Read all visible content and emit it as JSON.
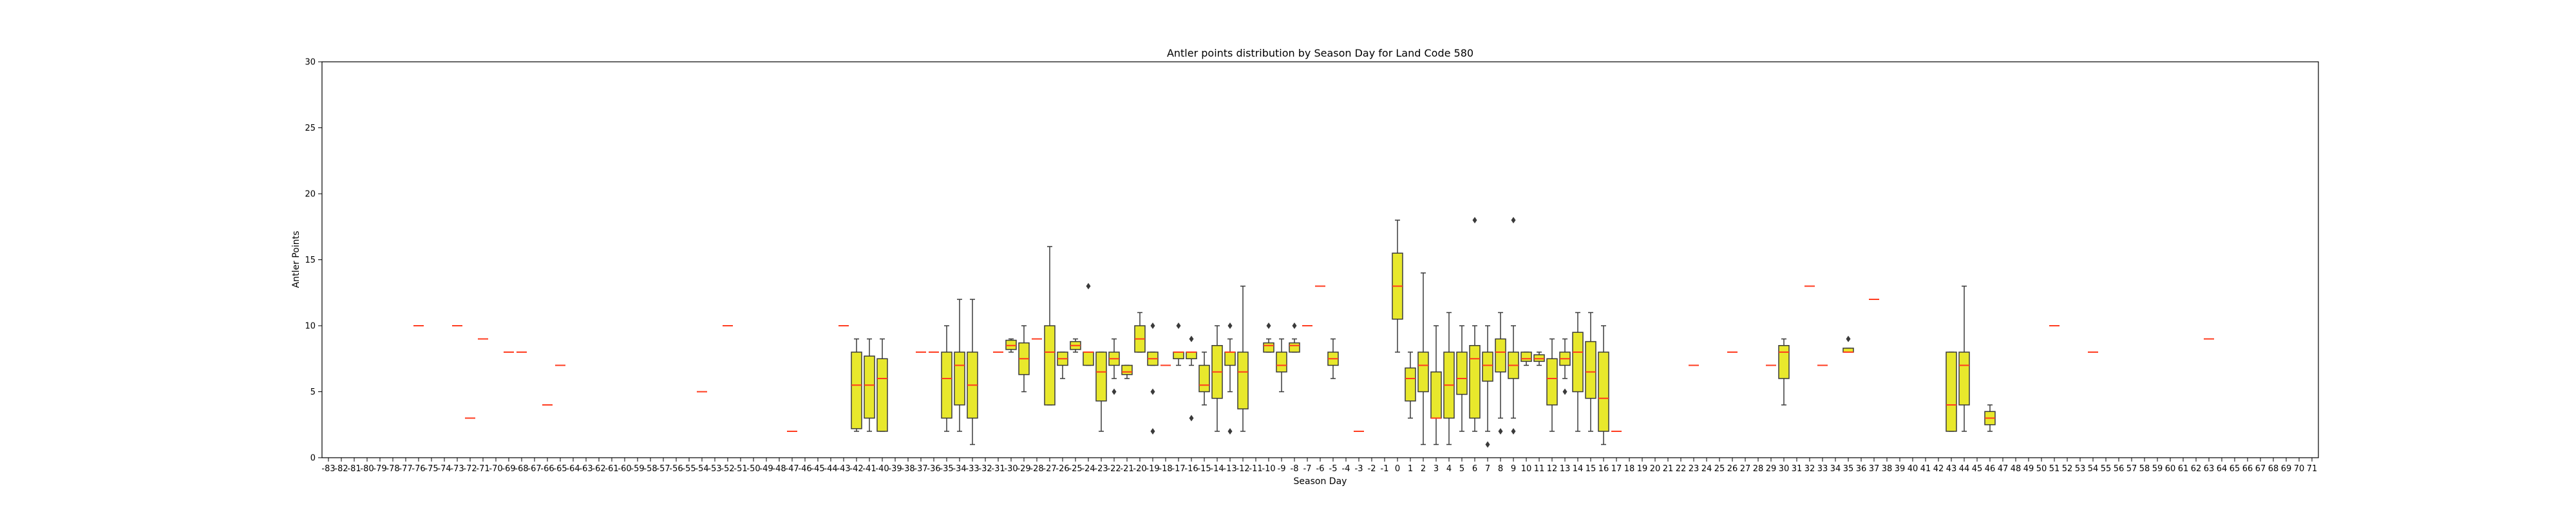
{
  "chart_data": {
    "type": "box",
    "title": "Antler points distribution by Season Day for Land Code 580",
    "xlabel": "Season Day",
    "ylabel": "Antler Points",
    "ylim": [
      0,
      30
    ],
    "y_ticks": [
      0,
      5,
      10,
      15,
      20,
      25,
      30
    ],
    "x_categories": [
      -83,
      -82,
      -81,
      -80,
      -79,
      -78,
      -77,
      -76,
      -75,
      -74,
      -73,
      -72,
      -71,
      -70,
      -69,
      -68,
      -67,
      -66,
      -65,
      -64,
      -63,
      -62,
      -61,
      -60,
      -59,
      -58,
      -57,
      -56,
      -55,
      -54,
      -53,
      -52,
      -51,
      -50,
      -49,
      -48,
      -47,
      -46,
      -45,
      -44,
      -43,
      -42,
      -41,
      -40,
      -39,
      -38,
      -37,
      -36,
      -35,
      -34,
      -33,
      -32,
      -31,
      -30,
      -29,
      -28,
      -27,
      -26,
      -25,
      -24,
      -23,
      -22,
      -21,
      -20,
      -19,
      -18,
      -17,
      -16,
      -15,
      -14,
      -13,
      -12,
      -11,
      -10,
      -9,
      -8,
      -7,
      -6,
      -5,
      -4,
      -3,
      -2,
      -1,
      0,
      1,
      2,
      3,
      4,
      5,
      6,
      7,
      8,
      9,
      10,
      11,
      12,
      13,
      14,
      15,
      16,
      17,
      18,
      19,
      20,
      21,
      22,
      23,
      24,
      25,
      26,
      27,
      28,
      29,
      30,
      31,
      32,
      33,
      34,
      35,
      36,
      37,
      38,
      39,
      40,
      41,
      42,
      43,
      44,
      45,
      46,
      47,
      48,
      49,
      50,
      51,
      52,
      53,
      54,
      55,
      56,
      57,
      58,
      59,
      60,
      61,
      62,
      63,
      64,
      65,
      66,
      67,
      68,
      69,
      70,
      71
    ],
    "box_color": "#e8e82c",
    "median_color": "#ff3b1f",
    "grid": false,
    "legend": "none",
    "boxes": [
      {
        "day": -76,
        "median": 10
      },
      {
        "day": -73,
        "median": 10
      },
      {
        "day": -72,
        "median": 3
      },
      {
        "day": -71,
        "median": 9
      },
      {
        "day": -69,
        "median": 8
      },
      {
        "day": -68,
        "median": 8
      },
      {
        "day": -66,
        "median": 4
      },
      {
        "day": -65,
        "median": 7
      },
      {
        "day": -54,
        "median": 5
      },
      {
        "day": -52,
        "median": 10
      },
      {
        "day": -47,
        "median": 2
      },
      {
        "day": -43,
        "median": 10
      },
      {
        "day": -42,
        "whislo": 2,
        "q1": 2.2,
        "median": 5.5,
        "q3": 8,
        "whishi": 9
      },
      {
        "day": -41,
        "whislo": 2,
        "q1": 3,
        "median": 5.5,
        "q3": 7.7,
        "whishi": 9
      },
      {
        "day": -40,
        "whislo": 2,
        "q1": 2,
        "median": 6,
        "q3": 7.5,
        "whishi": 9
      },
      {
        "day": -37,
        "median": 8
      },
      {
        "day": -36,
        "median": 8
      },
      {
        "day": -35,
        "whislo": 2,
        "q1": 3,
        "median": 6,
        "q3": 8,
        "whishi": 10
      },
      {
        "day": -34,
        "whislo": 2,
        "q1": 4,
        "median": 7,
        "q3": 8,
        "whishi": 12
      },
      {
        "day": -33,
        "whislo": 1,
        "q1": 3,
        "median": 5.5,
        "q3": 8,
        "whishi": 12
      },
      {
        "day": -31,
        "median": 8
      },
      {
        "day": -30,
        "whislo": 8,
        "q1": 8.2,
        "median": 8.5,
        "q3": 8.9,
        "whishi": 9
      },
      {
        "day": -29,
        "whislo": 5,
        "q1": 6.3,
        "median": 7.5,
        "q3": 8.7,
        "whishi": 10
      },
      {
        "day": -28,
        "median": 9
      },
      {
        "day": -27,
        "whislo": 4,
        "q1": 4,
        "median": 8,
        "q3": 10,
        "whishi": 16
      },
      {
        "day": -26,
        "whislo": 6,
        "q1": 7,
        "median": 7.5,
        "q3": 8,
        "whishi": 8
      },
      {
        "day": -25,
        "whislo": 8,
        "q1": 8.2,
        "median": 8.5,
        "q3": 8.8,
        "whishi": 9
      },
      {
        "day": -24,
        "whislo": 7,
        "q1": 7,
        "median": 8,
        "q3": 8,
        "whishi": 8,
        "fliers": [
          13
        ]
      },
      {
        "day": -23,
        "whislo": 2,
        "q1": 4.3,
        "median": 6.5,
        "q3": 8,
        "whishi": 8
      },
      {
        "day": -22,
        "whislo": 6,
        "q1": 7,
        "median": 7.5,
        "q3": 8,
        "whishi": 9,
        "fliers": [
          5
        ]
      },
      {
        "day": -21,
        "whislo": 6,
        "q1": 6.3,
        "median": 6.5,
        "q3": 7,
        "whishi": 7
      },
      {
        "day": -20,
        "whislo": 8,
        "q1": 8,
        "median": 9,
        "q3": 10,
        "whishi": 11
      },
      {
        "day": -19,
        "whislo": 7,
        "q1": 7,
        "median": 7.5,
        "q3": 8,
        "whishi": 8,
        "fliers": [
          10,
          5,
          2
        ]
      },
      {
        "day": -18,
        "median": 7
      },
      {
        "day": -17,
        "whislo": 7,
        "q1": 7.5,
        "median": 8,
        "q3": 8,
        "whishi": 8,
        "fliers": [
          10
        ]
      },
      {
        "day": -16,
        "whislo": 7,
        "q1": 7.5,
        "median": 8,
        "q3": 8,
        "whishi": 8,
        "fliers": [
          9,
          3
        ]
      },
      {
        "day": -15,
        "whislo": 4,
        "q1": 5,
        "median": 5.5,
        "q3": 7,
        "whishi": 8
      },
      {
        "day": -14,
        "whislo": 2,
        "q1": 4.5,
        "median": 6.5,
        "q3": 8.5,
        "whishi": 10
      },
      {
        "day": -13,
        "whislo": 5,
        "q1": 7,
        "median": 8,
        "q3": 8,
        "whishi": 9,
        "fliers": [
          10,
          2
        ]
      },
      {
        "day": -12,
        "whislo": 2,
        "q1": 3.7,
        "median": 6.5,
        "q3": 8,
        "whishi": 13
      },
      {
        "day": -10,
        "whislo": 8,
        "q1": 8,
        "median": 8.5,
        "q3": 8.7,
        "whishi": 9,
        "fliers": [
          10
        ]
      },
      {
        "day": -9,
        "whislo": 5,
        "q1": 6.5,
        "median": 7,
        "q3": 8,
        "whishi": 9
      },
      {
        "day": -8,
        "whislo": 8,
        "q1": 8,
        "median": 8.5,
        "q3": 8.7,
        "whishi": 9,
        "fliers": [
          10
        ]
      },
      {
        "day": -7,
        "median": 10
      },
      {
        "day": -6,
        "median": 13
      },
      {
        "day": -5,
        "whislo": 6,
        "q1": 7,
        "median": 7.5,
        "q3": 8,
        "whishi": 9
      },
      {
        "day": -3,
        "median": 2
      },
      {
        "day": 0,
        "whislo": 8,
        "q1": 10.5,
        "median": 13,
        "q3": 15.5,
        "whishi": 18
      },
      {
        "day": 1,
        "whislo": 3,
        "q1": 4.3,
        "median": 6,
        "q3": 6.8,
        "whishi": 8
      },
      {
        "day": 2,
        "whislo": 1,
        "q1": 5,
        "median": 7,
        "q3": 8,
        "whishi": 14
      },
      {
        "day": 3,
        "whislo": 1,
        "q1": 3,
        "median": 3,
        "q3": 6.5,
        "whishi": 10
      },
      {
        "day": 4,
        "whislo": 1,
        "q1": 3,
        "median": 5.5,
        "q3": 8,
        "whishi": 11
      },
      {
        "day": 5,
        "whislo": 2,
        "q1": 4.8,
        "median": 6,
        "q3": 8,
        "whishi": 10
      },
      {
        "day": 6,
        "whislo": 2,
        "q1": 3,
        "median": 7.5,
        "q3": 8.5,
        "whishi": 10,
        "fliers": [
          18
        ]
      },
      {
        "day": 7,
        "whislo": 2,
        "q1": 5.8,
        "median": 7,
        "q3": 8,
        "whishi": 10,
        "fliers": [
          1
        ]
      },
      {
        "day": 8,
        "whislo": 3,
        "q1": 6.5,
        "median": 8,
        "q3": 9,
        "whishi": 11,
        "fliers": [
          2
        ]
      },
      {
        "day": 9,
        "whislo": 3,
        "q1": 6,
        "median": 7,
        "q3": 8,
        "whishi": 10,
        "fliers": [
          18,
          2
        ]
      },
      {
        "day": 10,
        "whislo": 7,
        "q1": 7.3,
        "median": 7.5,
        "q3": 8,
        "whishi": 8
      },
      {
        "day": 11,
        "whislo": 7,
        "q1": 7.3,
        "median": 7.5,
        "q3": 7.8,
        "whishi": 8
      },
      {
        "day": 12,
        "whislo": 2,
        "q1": 4,
        "median": 6,
        "q3": 7.5,
        "whishi": 9
      },
      {
        "day": 13,
        "whislo": 6,
        "q1": 7,
        "median": 7.5,
        "q3": 8,
        "whishi": 9,
        "fliers": [
          5
        ]
      },
      {
        "day": 14,
        "whislo": 2,
        "q1": 5,
        "median": 8,
        "q3": 9.5,
        "whishi": 11
      },
      {
        "day": 15,
        "whislo": 2,
        "q1": 4.5,
        "median": 6.5,
        "q3": 8.8,
        "whishi": 11
      },
      {
        "day": 16,
        "whislo": 1,
        "q1": 2,
        "median": 4.5,
        "q3": 8,
        "whishi": 10
      },
      {
        "day": 17,
        "median": 2
      },
      {
        "day": 23,
        "median": 7
      },
      {
        "day": 26,
        "median": 8
      },
      {
        "day": 29,
        "median": 7
      },
      {
        "day": 30,
        "whislo": 4,
        "q1": 6,
        "median": 8,
        "q3": 8.5,
        "whishi": 9
      },
      {
        "day": 32,
        "median": 13
      },
      {
        "day": 33,
        "median": 7
      },
      {
        "day": 35,
        "whislo": 8,
        "q1": 8,
        "median": 8,
        "q3": 8.3,
        "whishi": 8.3,
        "fliers": [
          9
        ]
      },
      {
        "day": 37,
        "median": 12
      },
      {
        "day": 43,
        "whislo": 2,
        "q1": 2,
        "median": 4,
        "q3": 8,
        "whishi": 8
      },
      {
        "day": 44,
        "whislo": 2,
        "q1": 4,
        "median": 7,
        "q3": 8,
        "whishi": 13
      },
      {
        "day": 46,
        "whislo": 2,
        "q1": 2.5,
        "median": 3,
        "q3": 3.5,
        "whishi": 4
      },
      {
        "day": 51,
        "median": 10
      },
      {
        "day": 54,
        "median": 8
      },
      {
        "day": 63,
        "median": 9
      }
    ]
  }
}
